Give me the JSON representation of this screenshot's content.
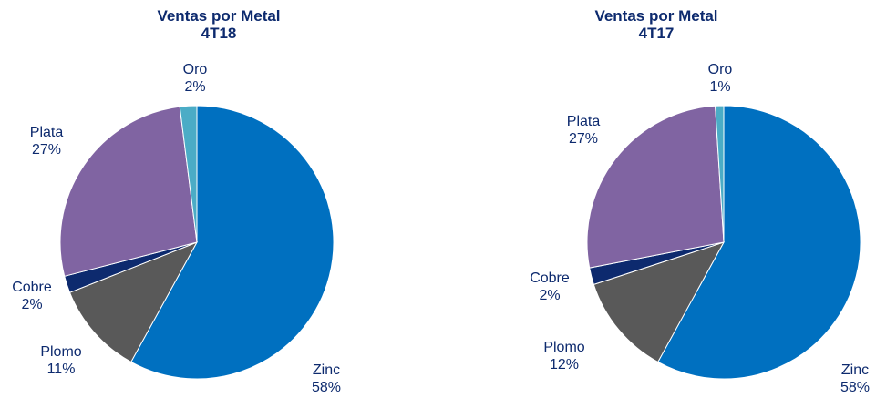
{
  "chart_data": [
    {
      "type": "pie",
      "title": "Ventas por Metal",
      "subtitle": "4T18",
      "slices": [
        {
          "label": "Zinc",
          "value": 58,
          "pct_label": "58%",
          "color": "#0070c0"
        },
        {
          "label": "Plomo",
          "value": 11,
          "pct_label": "11%",
          "color": "#595959"
        },
        {
          "label": "Cobre",
          "value": 2,
          "pct_label": "2%",
          "color": "#0d2a6e"
        },
        {
          "label": "Plata",
          "value": 27,
          "pct_label": "27%",
          "color": "#8064a2"
        },
        {
          "label": "Oro",
          "value": 2,
          "pct_label": "2%",
          "color": "#4bacc6"
        }
      ]
    },
    {
      "type": "pie",
      "title": "Ventas por Metal",
      "subtitle": "4T17",
      "slices": [
        {
          "label": "Zinc",
          "value": 58,
          "pct_label": "58%",
          "color": "#0070c0"
        },
        {
          "label": "Plomo",
          "value": 12,
          "pct_label": "12%",
          "color": "#595959"
        },
        {
          "label": "Cobre",
          "value": 2,
          "pct_label": "2%",
          "color": "#0d2a6e"
        },
        {
          "label": "Plata",
          "value": 27,
          "pct_label": "27%",
          "color": "#8064a2"
        },
        {
          "label": "Oro",
          "value": 1,
          "pct_label": "1%",
          "color": "#4bacc6"
        }
      ]
    }
  ]
}
